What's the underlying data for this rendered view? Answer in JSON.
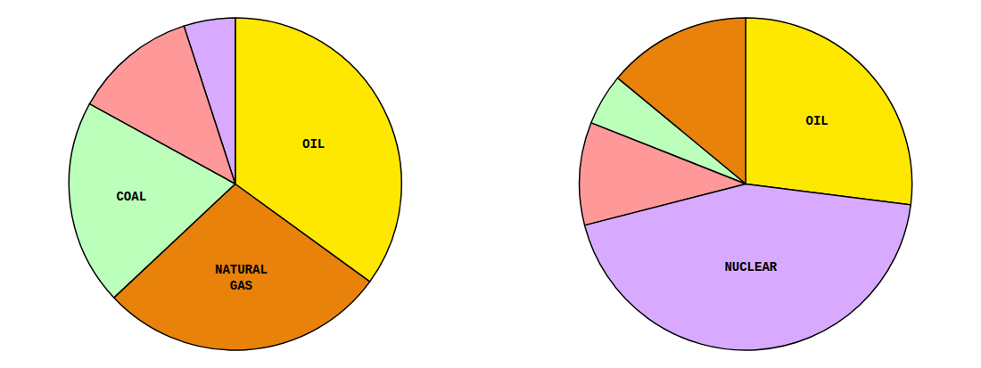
{
  "chart_data": [
    {
      "type": "pie",
      "categories": [
        "OIL",
        null,
        null,
        "COAL",
        "NATURAL\nGAS"
      ],
      "values": [
        35,
        5,
        12,
        20,
        28
      ],
      "colors": [
        "#FFE800",
        "#D8AAFF",
        "#FF9999",
        "#BBFFBB",
        "#E8820A"
      ]
    },
    {
      "type": "pie",
      "categories": [
        "OIL",
        null,
        null,
        null,
        "NUCLEAR"
      ],
      "values": [
        27,
        14,
        5,
        10,
        44
      ],
      "colors": [
        "#FFE800",
        "#E8820A",
        "#BBFFBB",
        "#FF9999",
        "#D8AAFF"
      ]
    }
  ]
}
